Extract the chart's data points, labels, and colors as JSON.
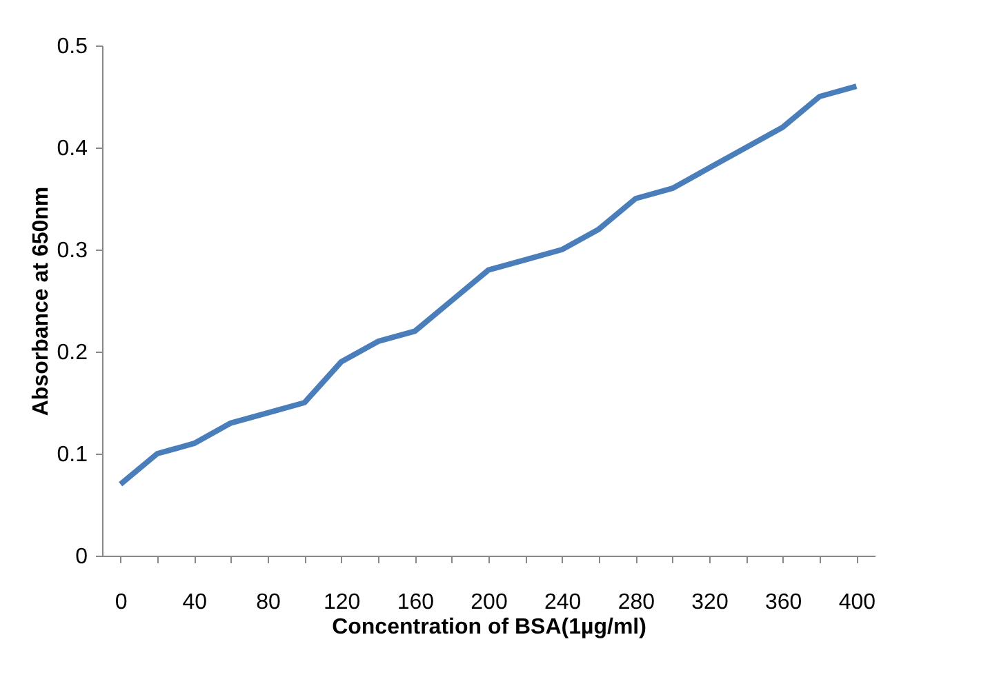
{
  "chart_data": {
    "type": "line",
    "xlabel": "Concentration of BSA(1µg/ml)",
    "ylabel": "Absorbance at 650nm",
    "categories": [
      "0",
      null,
      "40",
      null,
      "80",
      null,
      "120",
      null,
      "160",
      null,
      "200",
      null,
      "240",
      null,
      "280",
      null,
      "320",
      null,
      "360",
      null,
      "400"
    ],
    "series": [
      {
        "color": "#4a7ebb",
        "values": [
          0.07,
          0.1,
          0.11,
          0.13,
          0.14,
          0.15,
          0.19,
          0.21,
          0.22,
          0.25,
          0.28,
          0.29,
          0.3,
          0.32,
          0.35,
          0.36,
          0.38,
          0.4,
          0.42,
          0.45,
          0.46
        ]
      }
    ],
    "ylim": [
      0,
      0.5
    ],
    "yticks": [
      0,
      {
        "value": 0.1,
        "label": "0.1"
      },
      {
        "value": 0.2,
        "label": "0.2"
      },
      {
        "value": 0.3,
        "label": "0.3"
      },
      {
        "value": 0.4,
        "label": "0.4"
      },
      {
        "value": 0.5,
        "label": "0.5"
      }
    ],
    "grid": false,
    "legend": false,
    "marker": "none",
    "line_style": "solid"
  }
}
